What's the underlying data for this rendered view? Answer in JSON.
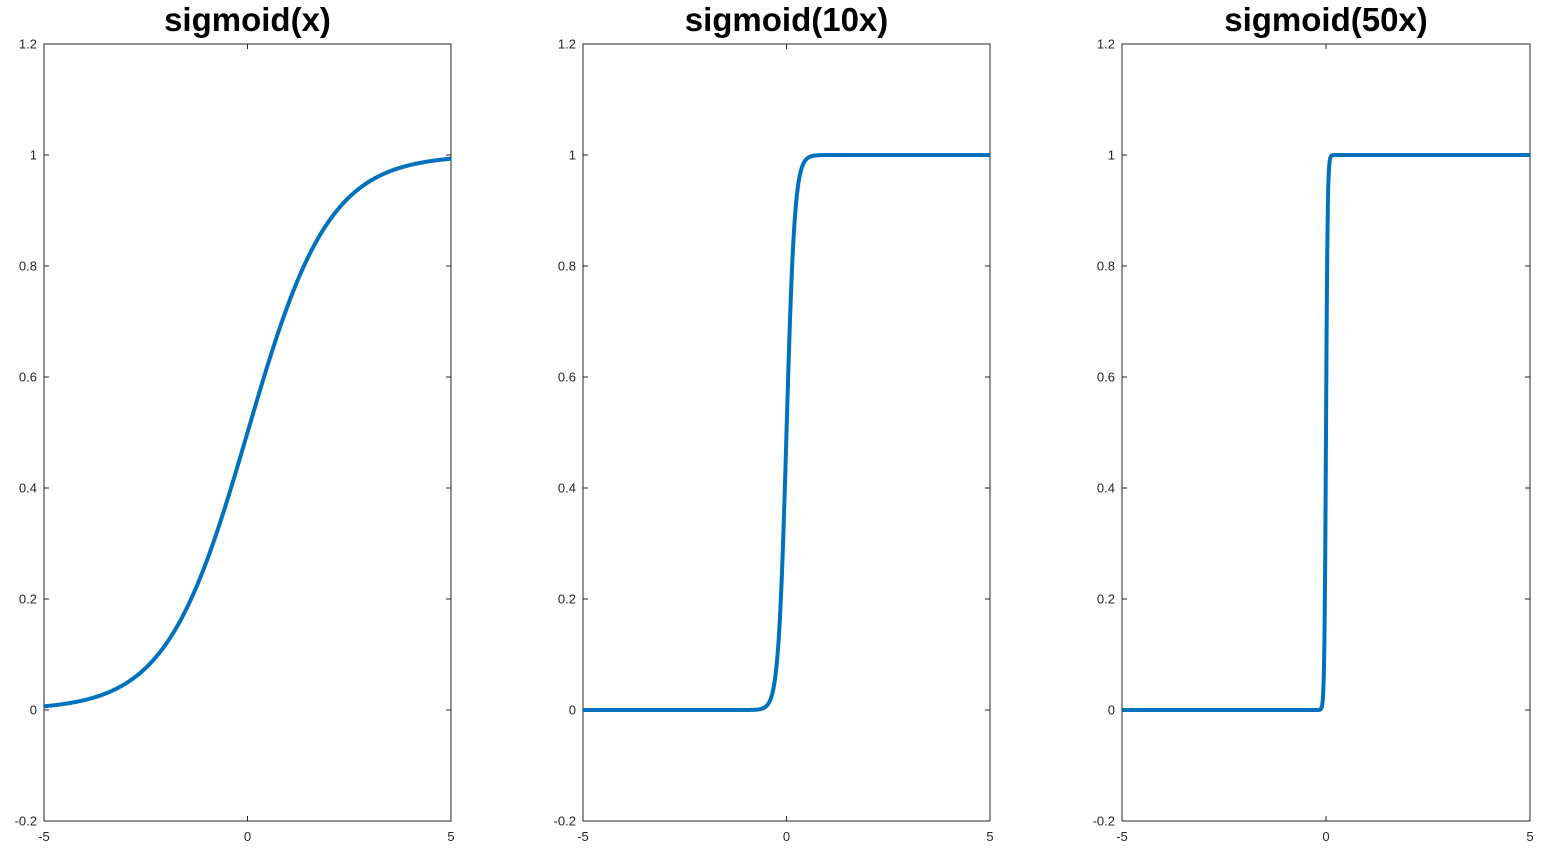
{
  "chart_data": [
    {
      "type": "line",
      "title": "sigmoid(x)",
      "function": "sigmoid",
      "scale": 1,
      "xlim": [
        -5,
        5
      ],
      "ylim": [
        -0.2,
        1.2
      ],
      "xticks": [
        "-5",
        "0",
        "5"
      ],
      "yticks": [
        "-0.2",
        "0",
        "0.2",
        "0.4",
        "0.6",
        "0.8",
        "1",
        "1.2"
      ],
      "x": [
        -5,
        -4,
        -3,
        -2,
        -1,
        0,
        1,
        2,
        3,
        4,
        5
      ],
      "y": [
        0.0067,
        0.018,
        0.047,
        0.119,
        0.269,
        0.5,
        0.731,
        0.881,
        0.953,
        0.982,
        0.9933
      ],
      "xlabel": "",
      "ylabel": "",
      "grid": false,
      "color": "#0072BD"
    },
    {
      "type": "line",
      "title": "sigmoid(10x)",
      "function": "sigmoid",
      "scale": 10,
      "xlim": [
        -5,
        5
      ],
      "ylim": [
        -0.2,
        1.2
      ],
      "xticks": [
        "-5",
        "0",
        "5"
      ],
      "yticks": [
        "-0.2",
        "0",
        "0.2",
        "0.4",
        "0.6",
        "0.8",
        "1",
        "1.2"
      ],
      "x": [
        -5,
        -0.5,
        -0.2,
        -0.1,
        0,
        0.1,
        0.2,
        0.5,
        5
      ],
      "y": [
        0,
        0.0067,
        0.119,
        0.269,
        0.5,
        0.731,
        0.881,
        0.9933,
        1
      ],
      "xlabel": "",
      "ylabel": "",
      "grid": false,
      "color": "#0072BD"
    },
    {
      "type": "line",
      "title": "sigmoid(50x)",
      "function": "sigmoid",
      "scale": 50,
      "xlim": [
        -5,
        5
      ],
      "ylim": [
        -0.2,
        1.2
      ],
      "xticks": [
        "-5",
        "0",
        "5"
      ],
      "yticks": [
        "-0.2",
        "0",
        "0.2",
        "0.4",
        "0.6",
        "0.8",
        "1",
        "1.2"
      ],
      "x": [
        -5,
        -0.1,
        -0.04,
        -0.02,
        0,
        0.02,
        0.04,
        0.1,
        5
      ],
      "y": [
        0,
        0.0067,
        0.119,
        0.269,
        0.5,
        0.731,
        0.881,
        0.9933,
        1
      ],
      "xlabel": "",
      "ylabel": "",
      "grid": false,
      "color": "#0072BD"
    }
  ]
}
